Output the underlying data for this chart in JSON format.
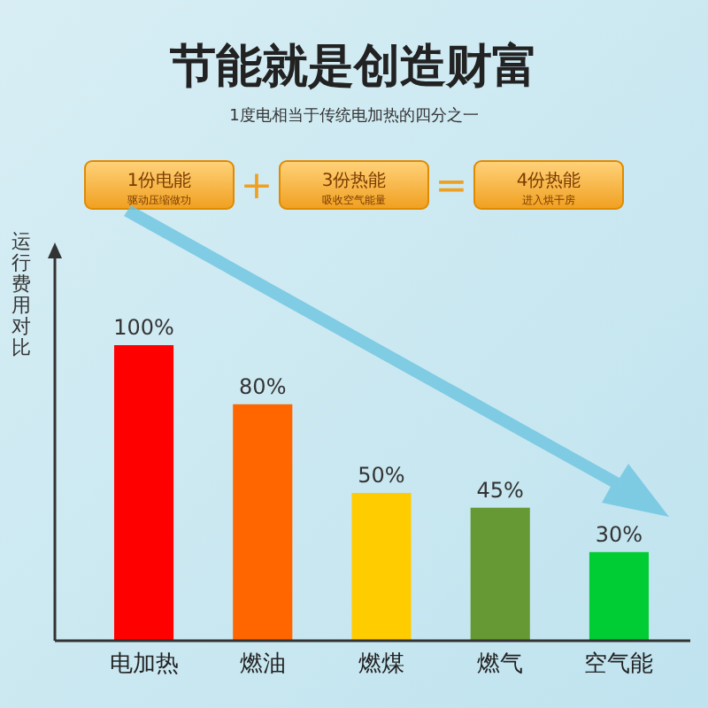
{
  "chart_data": {
    "type": "bar",
    "title": "节能就是创造财富",
    "subtitle": "1度电相当于传统电加热的四分之一",
    "ylabel": "运行费用对比",
    "categories": [
      "电加热",
      "燃油",
      "燃煤",
      "燃气",
      "空气能"
    ],
    "values": [
      100,
      80,
      50,
      45,
      30
    ],
    "colors": [
      "#ff0000",
      "#ff6600",
      "#ffcc00",
      "#669933",
      "#00cc33"
    ],
    "value_labels": [
      "100%",
      "80%",
      "50%",
      "45%",
      "30%"
    ],
    "annotations": [
      "1份电能",
      "驱动压缩做功",
      "+",
      "3份热能",
      "吸收空气能量",
      "=",
      "4份热能",
      "进入烘干房"
    ]
  }
}
